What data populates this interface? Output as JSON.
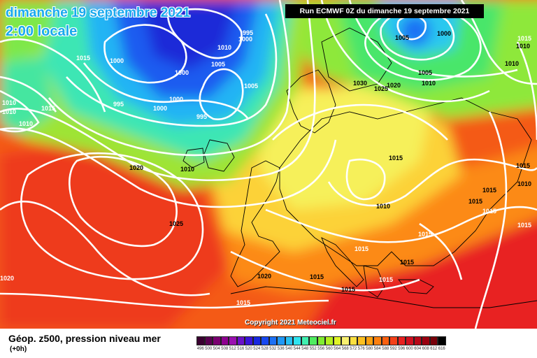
{
  "header": {
    "date_text": "dimanche 19 septembre 2021",
    "time_text": "2:00 locale",
    "run_text": "Run ECMWF 0Z du dimanche 19 septembre 2021",
    "copyright": "Copyright 2021 Meteociel.fr"
  },
  "legend": {
    "title": "Géop. z500, pression niveau mer",
    "subtitle": "(+0h)",
    "scale": [
      {
        "value": "496",
        "color": "#3a0030"
      },
      {
        "value": "500",
        "color": "#5a0050"
      },
      {
        "value": "504",
        "color": "#7a0070"
      },
      {
        "value": "508",
        "color": "#8e0090"
      },
      {
        "value": "512",
        "color": "#9a10b0"
      },
      {
        "value": "516",
        "color": "#6a10c8"
      },
      {
        "value": "520",
        "color": "#3a14d8"
      },
      {
        "value": "524",
        "color": "#1828e0"
      },
      {
        "value": "528",
        "color": "#1848f0"
      },
      {
        "value": "532",
        "color": "#1c70f4"
      },
      {
        "value": "536",
        "color": "#2098f6"
      },
      {
        "value": "540",
        "color": "#28c0f4"
      },
      {
        "value": "544",
        "color": "#30e4f0"
      },
      {
        "value": "548",
        "color": "#40f0b0"
      },
      {
        "value": "552",
        "color": "#50ec60"
      },
      {
        "value": "556",
        "color": "#80ec30"
      },
      {
        "value": "560",
        "color": "#b4f020"
      },
      {
        "value": "564",
        "color": "#e0f428"
      },
      {
        "value": "568",
        "color": "#f8f070"
      },
      {
        "value": "572",
        "color": "#fce040"
      },
      {
        "value": "576",
        "color": "#fcc020"
      },
      {
        "value": "580",
        "color": "#fca010"
      },
      {
        "value": "584",
        "color": "#fc8010"
      },
      {
        "value": "588",
        "color": "#fa6010"
      },
      {
        "value": "592",
        "color": "#f44018"
      },
      {
        "value": "596",
        "color": "#e82020"
      },
      {
        "value": "600",
        "color": "#d01020"
      },
      {
        "value": "604",
        "color": "#b80818"
      },
      {
        "value": "608",
        "color": "#9a0010"
      },
      {
        "value": "612",
        "color": "#78000a"
      },
      {
        "value": "616",
        "color": "#000000"
      }
    ]
  },
  "isobar_labels": [
    {
      "text": "995",
      "color": "#fff"
    },
    {
      "text": "1000",
      "color": "#fff"
    },
    {
      "text": "1010",
      "color": "#fff"
    },
    {
      "text": "1005",
      "color": "#fff"
    },
    {
      "text": "1015",
      "color": "#fff"
    },
    {
      "text": "1000",
      "color": "#fff"
    },
    {
      "text": "1000",
      "color": "#fff"
    },
    {
      "text": "1005",
      "color": "#fff"
    },
    {
      "text": "1000",
      "color": "#fff"
    },
    {
      "text": "995",
      "color": "#fff"
    },
    {
      "text": "1000",
      "color": "#fff"
    },
    {
      "text": "995",
      "color": "#fff"
    },
    {
      "text": "1005",
      "color": "#000"
    },
    {
      "text": "1010",
      "color": "#fff"
    },
    {
      "text": "1010",
      "color": "#fff"
    },
    {
      "text": "1015",
      "color": "#fff"
    },
    {
      "text": "1010",
      "color": "#fff"
    },
    {
      "text": "1030",
      "color": "#000"
    },
    {
      "text": "1025",
      "color": "#000"
    },
    {
      "text": "1020",
      "color": "#000"
    },
    {
      "text": "1000",
      "color": "#000"
    },
    {
      "text": "1005",
      "color": "#000"
    },
    {
      "text": "1010",
      "color": "#000"
    },
    {
      "text": "1010",
      "color": "#000"
    },
    {
      "text": "1015",
      "color": "#000"
    },
    {
      "text": "1020",
      "color": "#000"
    },
    {
      "text": "1010",
      "color": "#000"
    },
    {
      "text": "1025",
      "color": "#000"
    },
    {
      "text": "1015",
      "color": "#000"
    },
    {
      "text": "1010",
      "color": "#000"
    },
    {
      "text": "1015",
      "color": "#fff"
    },
    {
      "text": "1015",
      "color": "#fff"
    },
    {
      "text": "1015",
      "color": "#fff"
    },
    {
      "text": "1015",
      "color": "#fff"
    },
    {
      "text": "1015",
      "color": "#000"
    },
    {
      "text": "1015",
      "color": "#fff"
    },
    {
      "text": "1015",
      "color": "#000"
    },
    {
      "text": "1015",
      "color": "#fff"
    },
    {
      "text": "1020",
      "color": "#000"
    },
    {
      "text": "1015",
      "color": "#000"
    },
    {
      "text": "1020",
      "color": "#fff"
    },
    {
      "text": "1015",
      "color": "#fff"
    },
    {
      "text": "1010",
      "color": "#000"
    },
    {
      "text": "1015",
      "color": "#000"
    },
    {
      "text": "1010",
      "color": "#000"
    },
    {
      "text": "1015",
      "color": "#000"
    }
  ]
}
